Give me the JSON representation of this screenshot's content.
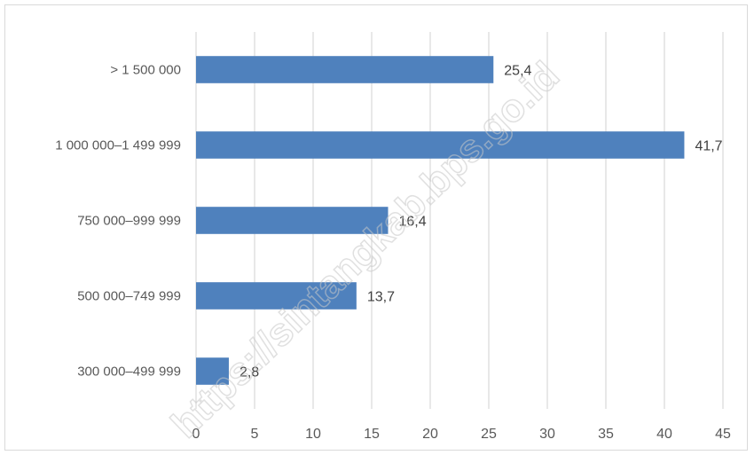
{
  "chart_data": {
    "type": "bar",
    "orientation": "horizontal",
    "categories": [
      "> 1 500 000",
      "1 000 000–1 499 999",
      "750 000–999 999",
      "500 000–749 999",
      "300 000–499 999"
    ],
    "values": [
      25.4,
      41.7,
      16.4,
      13.7,
      2.8
    ],
    "value_labels": [
      "25,4",
      "41,7",
      "16,4",
      "13,7",
      "2,8"
    ],
    "xlim": [
      0,
      45
    ],
    "xticks": [
      0,
      5,
      10,
      15,
      20,
      25,
      30,
      35,
      40,
      45
    ],
    "grid": "vertical",
    "bar_color": "#4f81bd",
    "grid_color": "#d9d9d9",
    "watermark": "https://sintangkab.bps.go.id"
  }
}
